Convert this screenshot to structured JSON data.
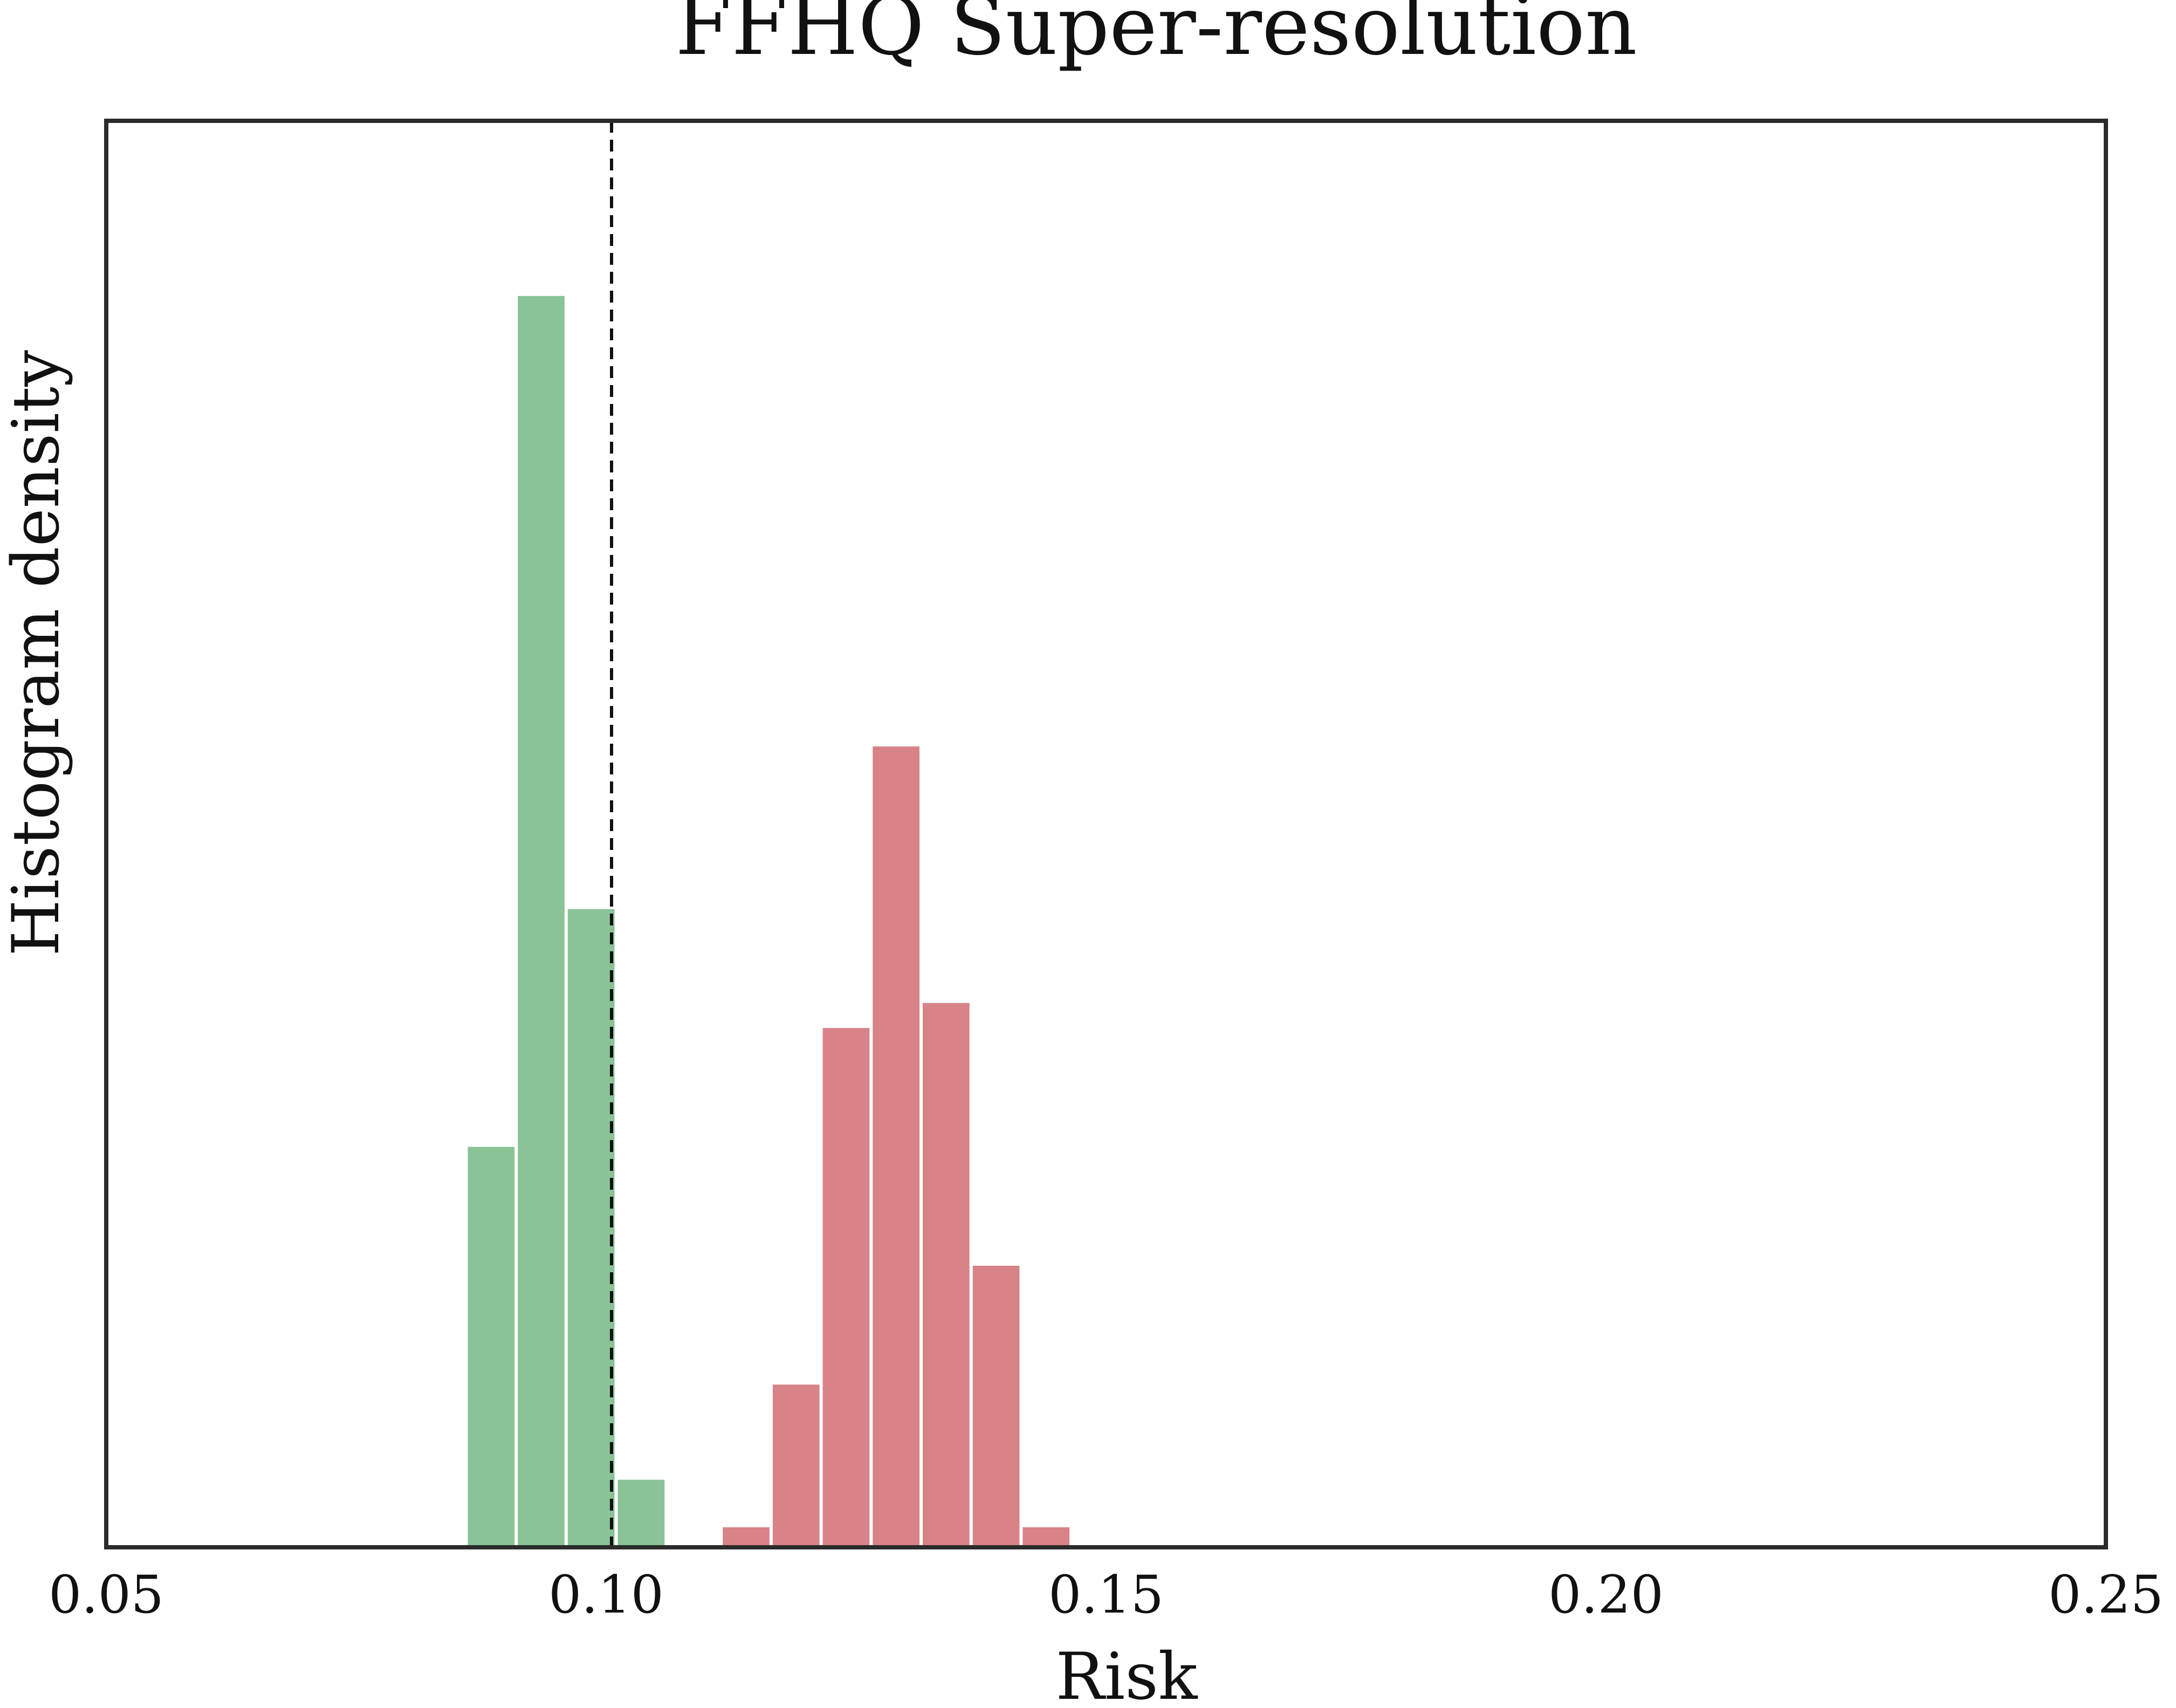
{
  "chart_data": {
    "type": "bar",
    "title": "FFHQ Super-resolution",
    "xlabel": "Risk",
    "ylabel": "Histogram density",
    "xlim": [
      0.05,
      0.25
    ],
    "ylim": [
      0,
      1.14
    ],
    "xticks": [
      "0.05",
      "0.10",
      "0.15",
      "0.20",
      "0.25"
    ],
    "grid": false,
    "legend": "none",
    "threshold": {
      "x": 0.1,
      "style": "dashed",
      "color": "#111111"
    },
    "series": [
      {
        "color": "#89c396",
        "bins": [
          {
            "x0": 0.086,
            "x1": 0.091,
            "value": 0.32
          },
          {
            "x0": 0.091,
            "x1": 0.096,
            "value": 1.0
          },
          {
            "x0": 0.096,
            "x1": 0.101,
            "value": 0.51
          },
          {
            "x0": 0.101,
            "x1": 0.106,
            "value": 0.054
          }
        ]
      },
      {
        "color": "#d78387",
        "bins": [
          {
            "x0": 0.1115,
            "x1": 0.1165,
            "value": 0.016
          },
          {
            "x0": 0.1165,
            "x1": 0.1215,
            "value": 0.13
          },
          {
            "x0": 0.1215,
            "x1": 0.1265,
            "value": 0.415
          },
          {
            "x0": 0.1265,
            "x1": 0.1315,
            "value": 0.64
          },
          {
            "x0": 0.1315,
            "x1": 0.1365,
            "value": 0.435
          },
          {
            "x0": 0.1365,
            "x1": 0.1415,
            "value": 0.225
          },
          {
            "x0": 0.1415,
            "x1": 0.1465,
            "value": 0.016
          }
        ]
      }
    ]
  }
}
